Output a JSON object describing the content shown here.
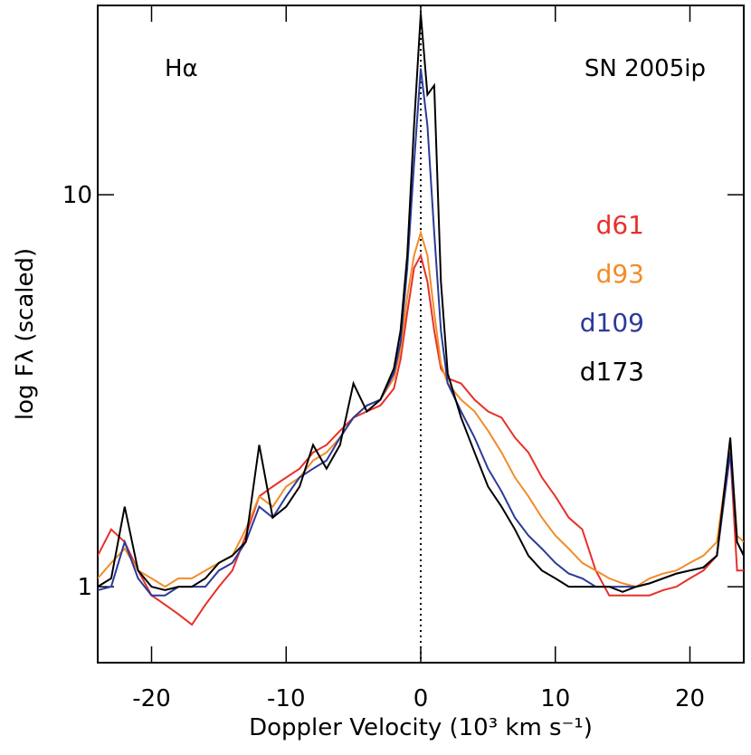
{
  "chart_data": {
    "type": "line",
    "annotations": [
      "Hα",
      "SN 2005ip"
    ],
    "xlabel": "Doppler Velocity (10³ km s⁻¹)",
    "ylabel": "log Fλ (scaled)",
    "xlim": [
      -24,
      24
    ],
    "xticks": [
      -20,
      -10,
      0,
      10,
      20
    ],
    "ylim": [
      0.64,
      30.4
    ],
    "yticks": [
      1,
      10
    ],
    "log_y": true,
    "reference_line_x": 0,
    "x": [
      -24,
      -23,
      -22,
      -21,
      -20,
      -19,
      -18,
      -17,
      -16,
      -15,
      -14,
      -13,
      -12,
      -11,
      -10,
      -9,
      -8,
      -7,
      -6,
      -5,
      -4,
      -3,
      -2,
      -1.5,
      -1,
      -0.5,
      0,
      0.5,
      1,
      1.5,
      2,
      3,
      4,
      5,
      6,
      7,
      8,
      9,
      10,
      11,
      12,
      13,
      14,
      15,
      16,
      17,
      18,
      19,
      20,
      21,
      22,
      23,
      23.5,
      24
    ],
    "series": [
      {
        "name": "d61",
        "color": "#e8302a",
        "values": [
          1.2,
          1.4,
          1.3,
          1.1,
          0.95,
          0.9,
          0.85,
          0.8,
          0.9,
          1.0,
          1.1,
          1.35,
          1.7,
          1.8,
          1.9,
          2.0,
          2.2,
          2.3,
          2.5,
          2.7,
          2.8,
          2.9,
          3.2,
          3.8,
          5,
          6.5,
          7,
          6,
          4.5,
          3.6,
          3.4,
          3.3,
          3.0,
          2.8,
          2.7,
          2.4,
          2.2,
          1.9,
          1.7,
          1.5,
          1.4,
          1.1,
          0.95,
          0.95,
          0.95,
          0.95,
          0.98,
          1.0,
          1.05,
          1.1,
          1.2,
          2.2,
          1.1,
          1.1
        ]
      },
      {
        "name": "d93",
        "color": "#f28c28",
        "values": [
          1.05,
          1.15,
          1.25,
          1.1,
          1.05,
          1.0,
          1.05,
          1.05,
          1.1,
          1.15,
          1.2,
          1.4,
          1.7,
          1.6,
          1.8,
          1.9,
          2.1,
          2.2,
          2.4,
          2.7,
          2.9,
          3.0,
          3.4,
          4.0,
          5.5,
          7,
          8,
          7,
          5,
          3.7,
          3.3,
          3.0,
          2.8,
          2.5,
          2.2,
          1.9,
          1.7,
          1.5,
          1.35,
          1.25,
          1.15,
          1.1,
          1.05,
          1.02,
          1.0,
          1.05,
          1.08,
          1.1,
          1.15,
          1.2,
          1.3,
          2.3,
          1.35,
          1.3
        ]
      },
      {
        "name": "d109",
        "color": "#2b3a98",
        "values": [
          0.98,
          1.0,
          1.3,
          1.05,
          0.95,
          0.95,
          1.0,
          1.0,
          1.0,
          1.1,
          1.15,
          1.3,
          1.6,
          1.5,
          1.7,
          1.9,
          2.0,
          2.1,
          2.4,
          2.7,
          2.9,
          3.0,
          3.5,
          4.2,
          6.5,
          12,
          21,
          15,
          8,
          4.5,
          3.3,
          2.8,
          2.4,
          2.0,
          1.75,
          1.5,
          1.35,
          1.25,
          1.15,
          1.08,
          1.05,
          1.0,
          1.0,
          1.0,
          1.0,
          1.02,
          1.05,
          1.08,
          1.1,
          1.12,
          1.2,
          2.2,
          1.3,
          1.2
        ]
      },
      {
        "name": "d173",
        "color": "#000000",
        "values": [
          1.0,
          1.05,
          1.6,
          1.1,
          1.0,
          0.98,
          1.0,
          1.0,
          1.05,
          1.15,
          1.2,
          1.3,
          2.3,
          1.5,
          1.6,
          1.8,
          2.3,
          2.0,
          2.3,
          3.3,
          2.8,
          3.0,
          3.6,
          4.5,
          7,
          15,
          29,
          18,
          19,
          6,
          3.5,
          2.7,
          2.2,
          1.8,
          1.6,
          1.4,
          1.2,
          1.1,
          1.05,
          1.0,
          1.0,
          1.0,
          1.0,
          0.97,
          1.0,
          1.02,
          1.05,
          1.08,
          1.1,
          1.12,
          1.2,
          2.4,
          1.3,
          1.2
        ]
      }
    ]
  }
}
